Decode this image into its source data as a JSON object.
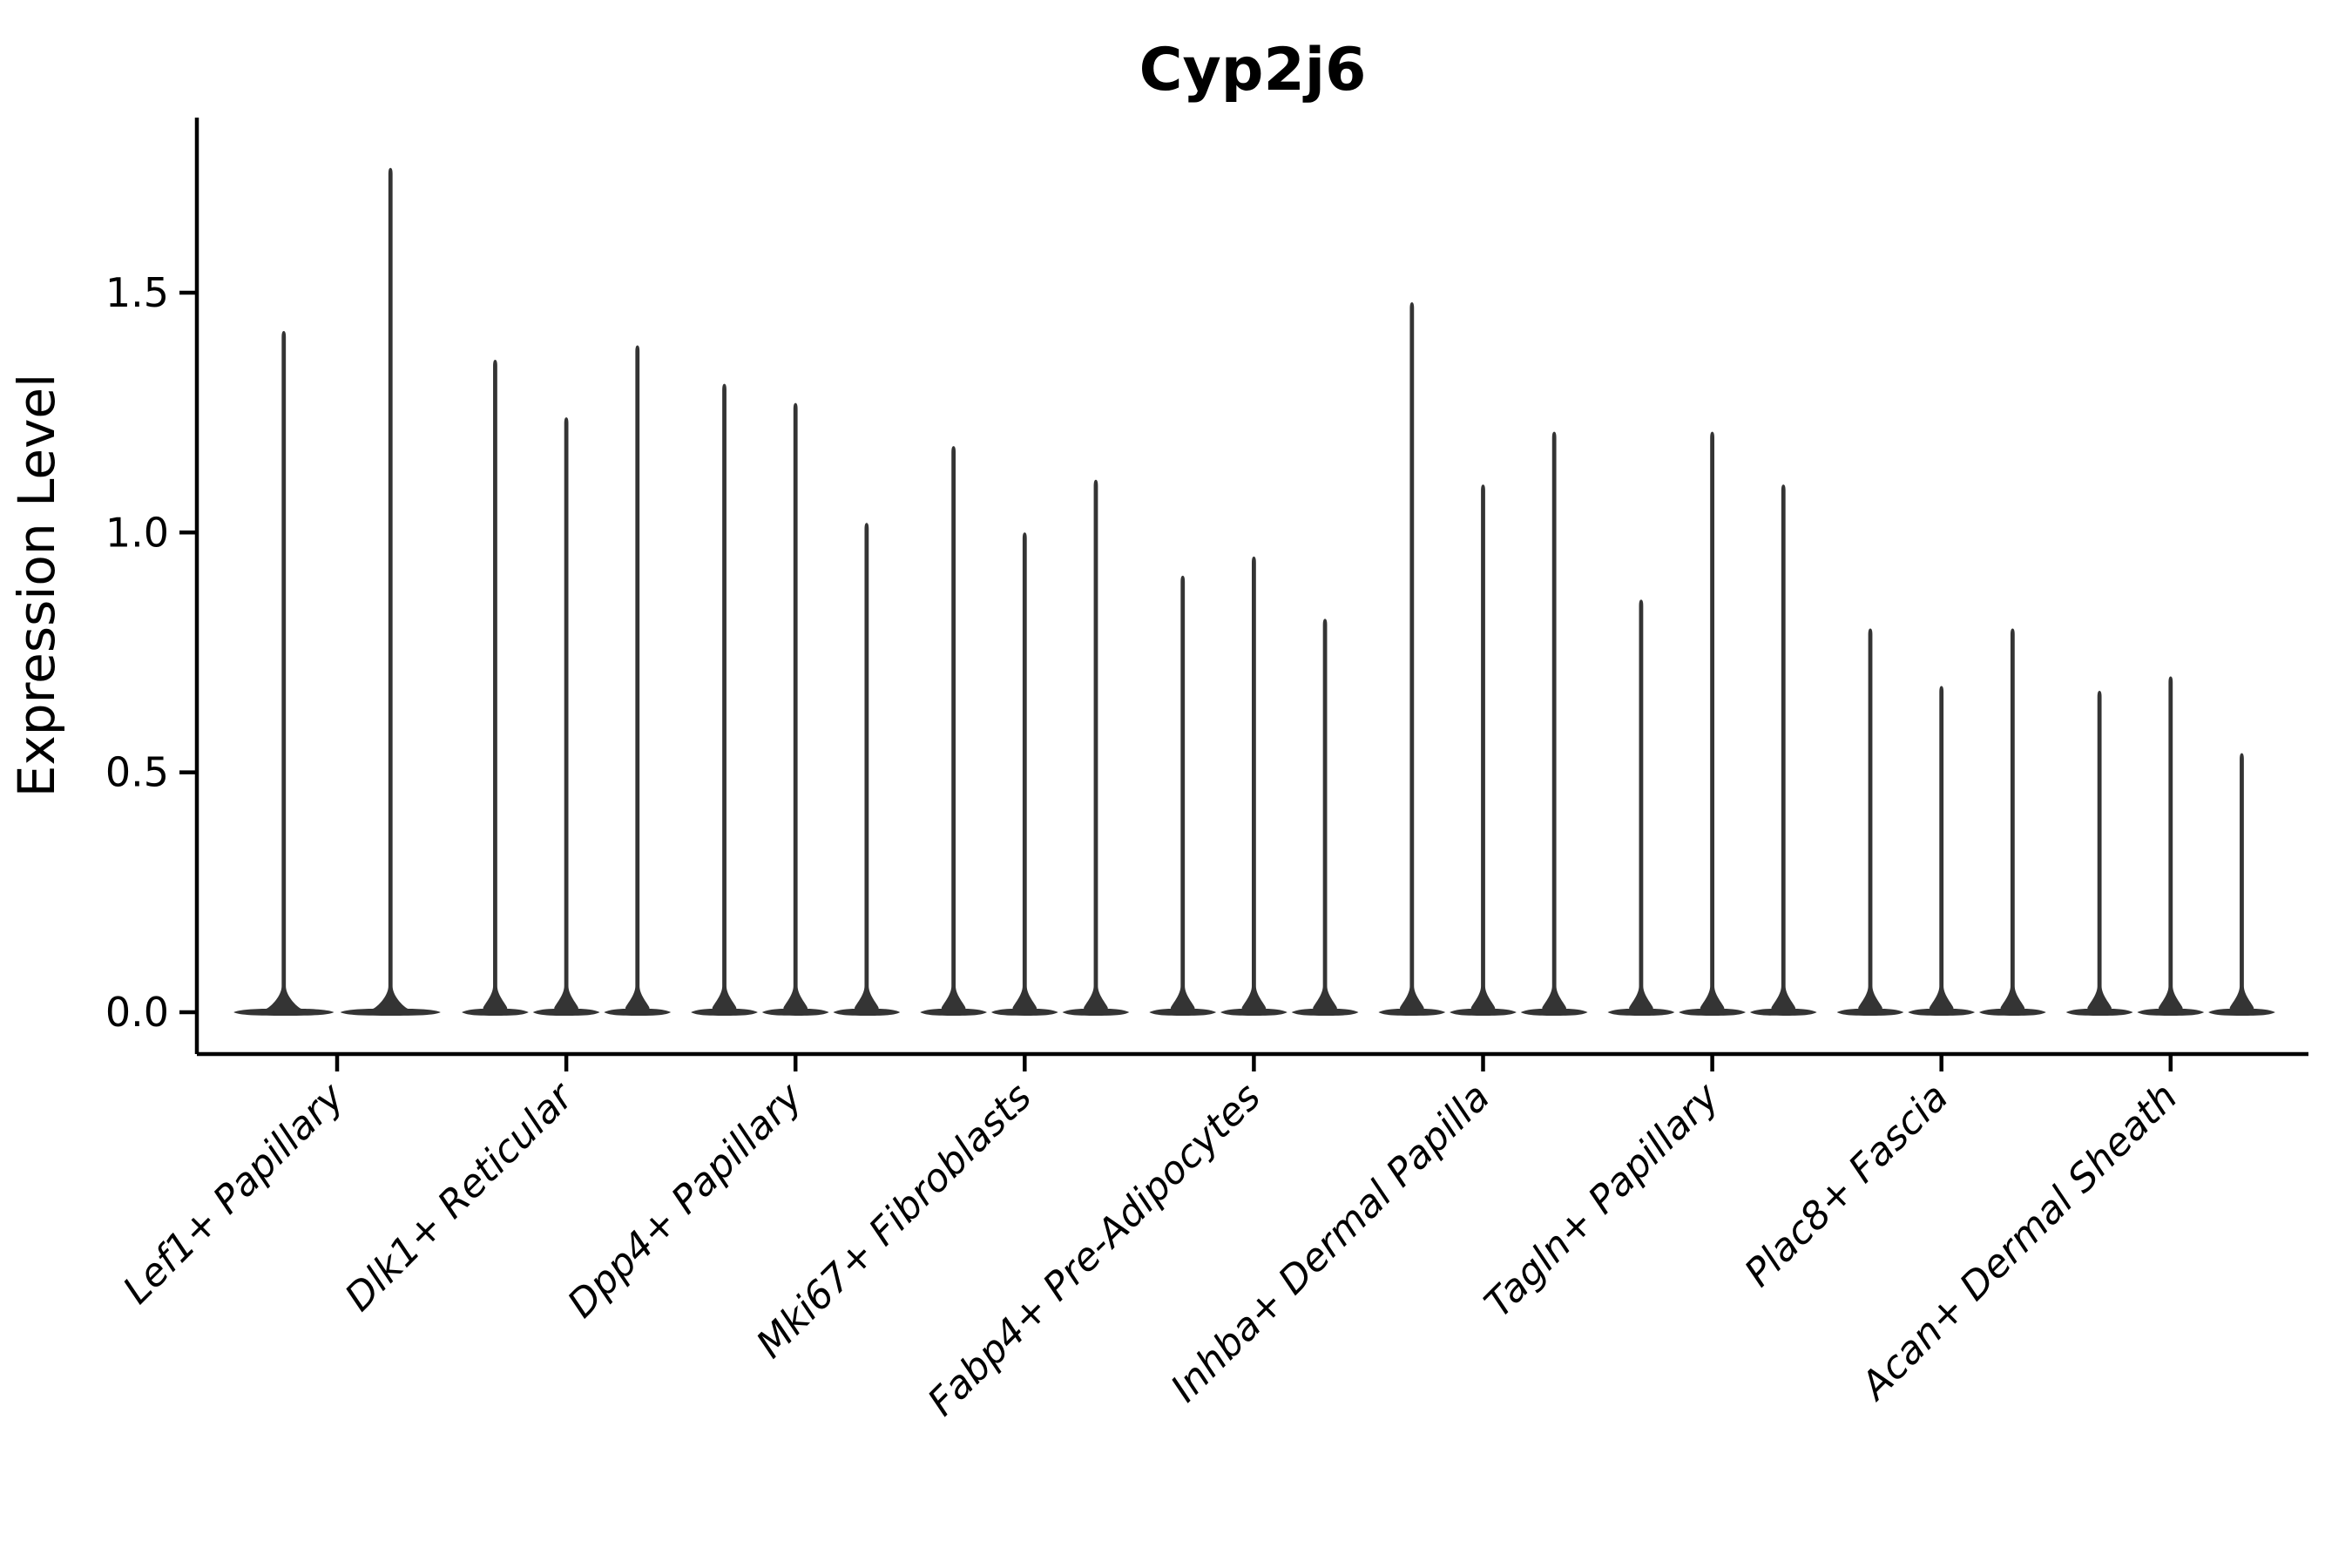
{
  "chart_data": {
    "type": "violin",
    "title": "Cyp2j6",
    "xlabel": "",
    "ylabel": "Expression Level",
    "yticks": [
      0.0,
      0.5,
      1.0,
      1.5
    ],
    "ytick_labels": [
      "0.0",
      "0.5",
      "1.0",
      "1.5"
    ],
    "ylim": [
      -0.087,
      1.865
    ],
    "grid": false,
    "legend": false,
    "x_label_rotation": 45,
    "categories": [
      "Lef1+ Papillary",
      "Dlk1+ Reticular",
      "Dpp4+ Papillary",
      "Mki67+ Fibroblasts",
      "Fabp4+ Pre-Adipocytes",
      "Inhba+ Dermal Papilla",
      "Tagln+ Papillary",
      "Plac8+ Fascia",
      "Acan+ Dermal Sheath"
    ],
    "series_note": "Each category shows thin violins of expression; bulk of cells at 0 with a narrow spike up to the max expression value per violin.",
    "violin_max_values": [
      [
        1.42,
        1.76
      ],
      [
        1.36,
        1.24,
        1.39
      ],
      [
        1.31,
        1.27,
        1.02
      ],
      [
        1.18,
        1.0,
        1.11
      ],
      [
        0.91,
        0.95,
        0.82
      ],
      [
        1.48,
        1.1,
        1.21
      ],
      [
        0.86,
        1.21,
        1.1
      ],
      [
        0.8,
        0.68,
        0.8
      ],
      [
        0.67,
        0.7,
        0.54
      ]
    ],
    "baseline_value": 0.0,
    "colors": {
      "violin": "#343434",
      "axis": "#000000",
      "text": "#000000",
      "background": "#ffffff"
    }
  }
}
